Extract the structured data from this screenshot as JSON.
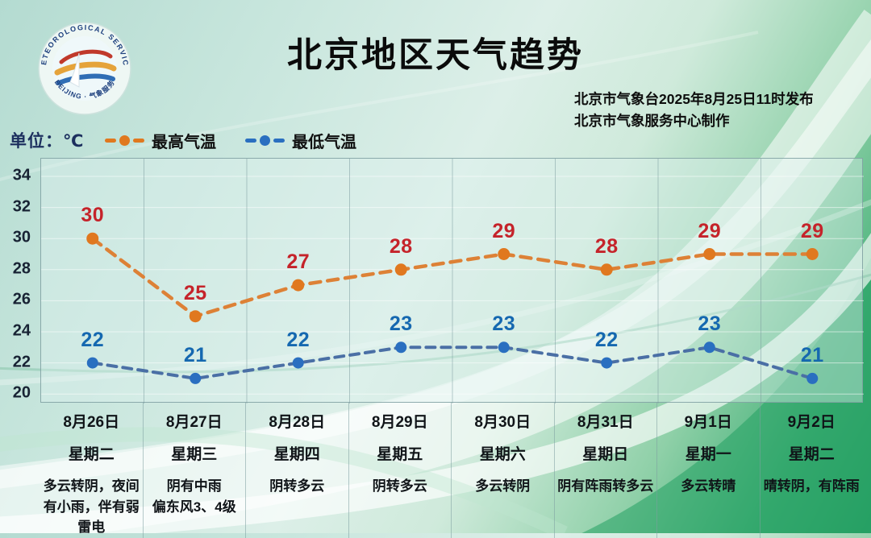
{
  "header": {
    "title": "北京地区天气趋势",
    "publish_line1": "北京市气象台2025年8月25日11时发布",
    "publish_line2": "北京市气象服务中心制作"
  },
  "logo": {
    "arc_text_top": "METEOROLOGICAL SERVICE",
    "arc_text_bottom": "BEIJING · 气象服务"
  },
  "unit_label": "单位：℃",
  "legend": {
    "high_label": "最高气温",
    "low_label": "最低气温"
  },
  "colors": {
    "high_line": "#dd8136",
    "high_dot": "#e0781f",
    "high_value_label": "#c5232a",
    "low_line": "#4a6fa5",
    "low_dot": "#2a6fc0",
    "low_value_label": "#1568b0",
    "grid_line": "rgba(120,152,156,0.5)",
    "h_grid_line": "rgba(255,255,255,0.55)"
  },
  "chart_data": {
    "type": "line",
    "title": "北京地区天气趋势",
    "ylabel": "℃",
    "ylim": [
      20,
      34
    ],
    "yticks": [
      34,
      32,
      30,
      28,
      26,
      24,
      22,
      20
    ],
    "grid": "vertical column separators + faint horizontal lines",
    "legend_position": "top-left",
    "categories": [
      "8月26日",
      "8月27日",
      "8月28日",
      "8月29日",
      "8月30日",
      "8月31日",
      "9月1日",
      "9月2日"
    ],
    "weekdays": [
      "星期二",
      "星期三",
      "星期四",
      "星期五",
      "星期六",
      "星期日",
      "星期一",
      "星期二"
    ],
    "descriptions": [
      "多云转阴，夜间有小雨，伴有弱雷电",
      "阴有中雨\n偏东风3、4级",
      "阴转多云",
      "阴转多云",
      "多云转阴",
      "阴有阵雨转多云",
      "多云转晴",
      "晴转阴，有阵雨"
    ],
    "series": [
      {
        "name": "最高气温",
        "values": [
          30,
          25,
          27,
          28,
          29,
          28,
          29,
          29
        ]
      },
      {
        "name": "最低气温",
        "values": [
          22,
          21,
          22,
          23,
          23,
          22,
          23,
          21
        ]
      }
    ]
  }
}
